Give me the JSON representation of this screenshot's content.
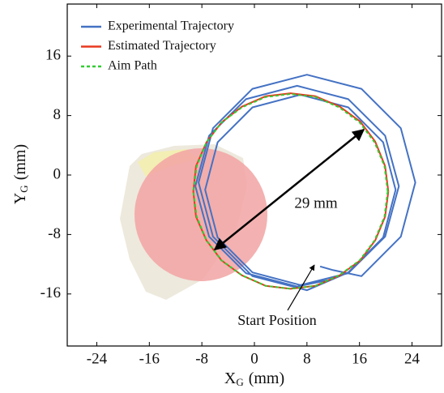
{
  "chart_data": {
    "type": "line",
    "x_label": {
      "symbol": "X",
      "subscript": "G",
      "unit": "(mm)"
    },
    "y_label": {
      "symbol": "Y",
      "subscript": "G",
      "unit": "(mm)"
    },
    "xlim": [
      -28.5,
      28.5
    ],
    "ylim": [
      -23,
      23
    ],
    "xticks": [
      -24,
      -16,
      -8,
      0,
      8,
      16,
      24
    ],
    "yticks": [
      -16,
      -8,
      0,
      8,
      16
    ],
    "legend": "upper left",
    "annotations": {
      "diameter": "29 mm",
      "start": "Start Position"
    },
    "series": [
      {
        "name": "Experimental Trajectory",
        "color": "#4472c4",
        "dash": false,
        "x": [
          10,
          12,
          16.3,
          22.3,
          24.5,
          22.3,
          16.3,
          8,
          -0.3,
          -6.3,
          -8.5,
          -6.3,
          -0.3,
          8,
          14.3,
          19.6,
          21.5,
          19.6,
          14.3,
          7,
          -0.3,
          -5.6,
          -7.5,
          -5.6,
          -0.3,
          7,
          14.3,
          19.9,
          22,
          19.9,
          14.3,
          6.5,
          -1.3,
          -6.9,
          -9,
          -6.9,
          -1.3,
          6.5,
          12
        ],
        "y": [
          -12.3,
          -12.8,
          -13.6,
          -8.3,
          -1,
          6.3,
          11.6,
          13.5,
          11.6,
          6.3,
          -1,
          -8.3,
          -13.6,
          -15.5,
          -13.1,
          -8.4,
          -2,
          4.4,
          9.1,
          10.8,
          9.1,
          4.4,
          -2,
          -8.4,
          -13.1,
          -14.8,
          -13.2,
          -8.3,
          -1.5,
          5.3,
          10.2,
          12,
          10.2,
          5.3,
          -1.5,
          -8.3,
          -13.2,
          -15,
          -14
        ]
      },
      {
        "name": "Estimated Trajectory",
        "color": "#e8391e",
        "dash": false,
        "x": [
          20.4,
          19.9,
          18.4,
          16.1,
          13,
          9.3,
          5.5,
          1.7,
          -1.9,
          -5,
          -7.3,
          -8.9,
          -9.3,
          -8.9,
          -7.3,
          -5,
          -1.9,
          1.7,
          5.5,
          9.3,
          13,
          16.1,
          18.4,
          19.9,
          20.4
        ],
        "y": [
          -2.2,
          1.2,
          4.5,
          7.2,
          9.2,
          10.6,
          11,
          10.6,
          9.2,
          7.1,
          4.4,
          1.2,
          -2.2,
          -5.6,
          -8.8,
          -11.5,
          -13.5,
          -14.9,
          -15.3,
          -14.9,
          -13.5,
          -11.5,
          -8.8,
          -5.6,
          -2.2
        ]
      },
      {
        "name": "Aim Path",
        "color": "#33cc33",
        "dash": true,
        "x": [
          20.3,
          19.8,
          18.3,
          16,
          12.9,
          9.3,
          5.5,
          1.7,
          -1.9,
          -5,
          -7.3,
          -8.8,
          -9.3,
          -8.8,
          -7.3,
          -5,
          -1.9,
          1.7,
          5.5,
          9.3,
          12.9,
          16,
          18.3,
          19.8,
          20.3
        ],
        "y": [
          -2.2,
          1.2,
          4.4,
          7.1,
          9.1,
          10.5,
          10.9,
          10.5,
          9.1,
          7.1,
          4.4,
          1.2,
          -2.2,
          -5.6,
          -8.8,
          -11.5,
          -13.5,
          -14.9,
          -15.3,
          -14.9,
          -13.5,
          -11.5,
          -8.8,
          -5.6,
          -2.2
        ]
      }
    ]
  }
}
